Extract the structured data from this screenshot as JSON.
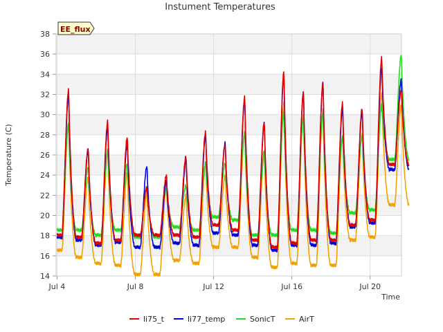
{
  "chart_data": {
    "type": "line",
    "title": "Instument Temperatures",
    "xlabel": "Time",
    "ylabel": "Temperature (C)",
    "badge": "EE_flux",
    "xlim": [
      3.95,
      21.6
    ],
    "ylim": [
      14,
      38
    ],
    "yticks": [
      14,
      16,
      18,
      20,
      22,
      24,
      26,
      28,
      30,
      32,
      34,
      36,
      38
    ],
    "xticks": [
      {
        "value": 4,
        "label": "Jul 4"
      },
      {
        "value": 8,
        "label": "Jul 8"
      },
      {
        "value": 12,
        "label": "Jul 12"
      },
      {
        "value": 16,
        "label": "Jul 16"
      },
      {
        "value": 20,
        "label": "Jul 20"
      }
    ],
    "grid": true,
    "legend_position": "bottom",
    "colors": {
      "li75_t": "#e00000",
      "li77_temp": "#0000dd",
      "SonicT": "#22dd22",
      "AirT": "#f5a000",
      "band": "#f2f2f2",
      "grid": "#dddddd",
      "badge_fill": "#ffffcc"
    },
    "daily": {
      "days": [
        "Jul 4",
        "Jul 5",
        "Jul 6",
        "Jul 7",
        "Jul 8",
        "Jul 9",
        "Jul 10",
        "Jul 11",
        "Jul 12",
        "Jul 13",
        "Jul 14",
        "Jul 15",
        "Jul 16",
        "Jul 17",
        "Jul 18",
        "Jul 19",
        "Jul 20",
        "Jul 21"
      ],
      "x_start": 4.0,
      "peak_hour": 0.6
    },
    "series": [
      {
        "name": "li75_t",
        "min": [
          18.0,
          17.8,
          17.2,
          17.5,
          18.0,
          null,
          18.0,
          17.8,
          19.0,
          18.5,
          17.5,
          16.8,
          17.2,
          17.5,
          17.5,
          19.0,
          19.5,
          25.0
        ],
        "max": [
          32.5,
          26.7,
          29.4,
          27.8,
          22.8,
          24.0,
          25.9,
          28.3,
          27.0,
          31.8,
          29.3,
          34.3,
          32.3,
          33.3,
          31.2,
          30.7,
          35.7,
          32.5
        ]
      },
      {
        "name": "li77_temp",
        "min": [
          17.8,
          17.5,
          17.0,
          17.3,
          16.8,
          null,
          17.2,
          17.0,
          18.2,
          18.0,
          17.0,
          16.5,
          17.0,
          17.0,
          17.2,
          18.8,
          19.2,
          24.5
        ],
        "max": [
          32.0,
          26.5,
          28.8,
          27.2,
          24.9,
          23.5,
          25.5,
          28.0,
          27.2,
          31.6,
          29.2,
          34.0,
          32.2,
          33.2,
          30.7,
          30.3,
          34.8,
          33.5
        ]
      },
      {
        "name": "SonicT",
        "min": [
          18.5,
          18.5,
          18.0,
          18.5,
          17.8,
          null,
          18.8,
          18.5,
          19.8,
          19.5,
          18.0,
          18.0,
          18.5,
          18.5,
          18.2,
          20.2,
          20.5,
          25.5
        ],
        "max": [
          29.0,
          24.8,
          26.5,
          25.2,
          22.9,
          22.8,
          23.0,
          25.2,
          25.2,
          28.2,
          26.5,
          30.3,
          29.7,
          30.2,
          27.8,
          28.0,
          31.0,
          36.0
        ]
      },
      {
        "name": "AirT",
        "min": [
          16.5,
          15.8,
          15.2,
          15.0,
          14.1,
          null,
          15.5,
          15.2,
          16.8,
          16.8,
          15.8,
          14.8,
          15.2,
          15.0,
          15.0,
          17.5,
          17.8,
          21.0
        ],
        "max": [
          29.3,
          23.8,
          26.4,
          24.3,
          22.3,
          23.0,
          22.0,
          25.0,
          24.0,
          28.4,
          26.2,
          31.2,
          30.2,
          30.5,
          28.0,
          28.1,
          32.2,
          31.0
        ]
      }
    ]
  }
}
